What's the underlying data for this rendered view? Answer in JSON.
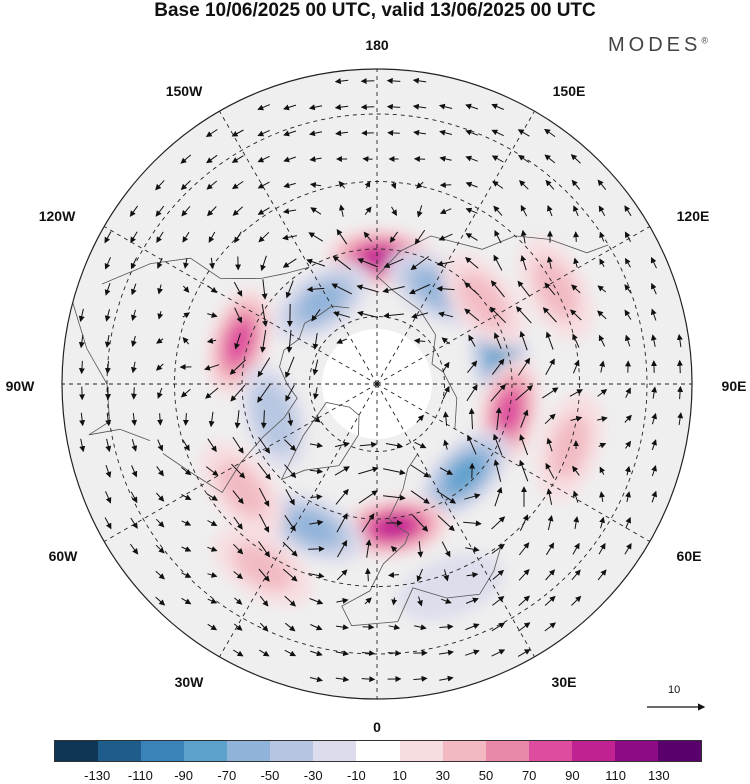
{
  "title": "Base 10/06/2025 00 UTC, valid 13/06/2025 00 UTC",
  "brand": "MODES",
  "brand_mark": "®",
  "longitudes": {
    "n": "180",
    "s": "0",
    "w": "90W",
    "e": "90E",
    "nw150": "150W",
    "ne150": "150E",
    "nw120": "120W",
    "ne120": "120E",
    "sw60": "60W",
    "se60": "60E",
    "sw30": "30W",
    "se30": "30E"
  },
  "reference_vector": {
    "label": "10"
  },
  "colorbar": {
    "colors": [
      "#0f3554",
      "#1e5c8c",
      "#3a83b8",
      "#5ca1cc",
      "#8fb3d9",
      "#b6c6e2",
      "#dcdcec",
      "#ffffff",
      "#f8dde0",
      "#f2b9c2",
      "#ea88a9",
      "#dd4c9e",
      "#c02291",
      "#8e0b86",
      "#59006d"
    ],
    "ticks": [
      "-130",
      "-110",
      "-90",
      "-70",
      "-50",
      "-30",
      "-10",
      "10",
      "30",
      "50",
      "70",
      "90",
      "110",
      "130"
    ]
  },
  "anomalies": [
    {
      "lat": 62,
      "lon": 178,
      "value": 90
    },
    {
      "lat": 68,
      "lon": -146,
      "value": -50
    },
    {
      "lat": 65,
      "lon": 148,
      "value": -50
    },
    {
      "lat": 58,
      "lon": -107,
      "value": 70
    },
    {
      "lat": 62,
      "lon": 102,
      "value": -70
    },
    {
      "lat": 60,
      "lon": 78,
      "value": 70
    },
    {
      "lat": 66,
      "lon": -72,
      "value": -40
    },
    {
      "lat": 62,
      "lon": 44,
      "value": -70
    },
    {
      "lat": 58,
      "lon": 7,
      "value": 90
    },
    {
      "lat": 55,
      "lon": -24,
      "value": -50
    },
    {
      "lat": 52,
      "lon": -52,
      "value": 30
    },
    {
      "lat": 42,
      "lon": -32,
      "value": 30
    },
    {
      "lat": 60,
      "lon": 128,
      "value": 30
    },
    {
      "lat": 45,
      "lon": 118,
      "value": 30
    },
    {
      "lat": 42,
      "lon": 20,
      "value": -20
    },
    {
      "lat": 45,
      "lon": 72,
      "value": 30
    }
  ]
}
